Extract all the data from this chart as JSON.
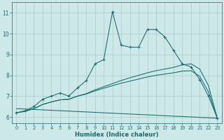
{
  "xlabel": "Humidex (Indice chaleur)",
  "bg_color": "#cce8e8",
  "grid_color": "#aacccc",
  "line_color": "#1a6b6b",
  "xlim": [
    -0.5,
    23.5
  ],
  "ylim": [
    5.7,
    11.5
  ],
  "xticks": [
    0,
    1,
    2,
    3,
    4,
    5,
    6,
    7,
    8,
    9,
    10,
    11,
    12,
    13,
    14,
    15,
    16,
    17,
    18,
    19,
    20,
    21,
    22,
    23
  ],
  "yticks": [
    6,
    7,
    8,
    9,
    10,
    11
  ],
  "line1_x": [
    0,
    1,
    2,
    3,
    4,
    5,
    6,
    7,
    8,
    9,
    10,
    11,
    12,
    13,
    14,
    15,
    16,
    17,
    18,
    19,
    20,
    21,
    22,
    23
  ],
  "line1_y": [
    6.2,
    6.3,
    6.5,
    6.85,
    7.0,
    7.15,
    7.0,
    7.4,
    7.75,
    8.55,
    8.75,
    11.05,
    9.45,
    9.35,
    9.35,
    10.2,
    10.2,
    9.85,
    9.2,
    8.55,
    8.4,
    7.8,
    7.0,
    5.95
  ],
  "line2_x": [
    0,
    1,
    2,
    3,
    4,
    5,
    6,
    7,
    8,
    9,
    10,
    11,
    12,
    13,
    14,
    15,
    16,
    17,
    18,
    19,
    20,
    21,
    22,
    23
  ],
  "line2_y": [
    6.2,
    6.27,
    6.4,
    6.6,
    6.72,
    6.82,
    6.85,
    7.0,
    7.12,
    7.3,
    7.45,
    7.6,
    7.75,
    7.88,
    8.0,
    8.12,
    8.22,
    8.3,
    8.38,
    8.5,
    8.55,
    8.3,
    7.5,
    5.95
  ],
  "line3_x": [
    0,
    1,
    2,
    3,
    4,
    5,
    6,
    7,
    8,
    9,
    10,
    11,
    12,
    13,
    14,
    15,
    16,
    17,
    18,
    19,
    20,
    21,
    22,
    23
  ],
  "line3_y": [
    6.2,
    6.27,
    6.4,
    6.6,
    6.72,
    6.82,
    6.85,
    7.0,
    7.1,
    7.25,
    7.38,
    7.5,
    7.62,
    7.72,
    7.82,
    7.92,
    8.0,
    8.06,
    8.12,
    8.2,
    8.22,
    7.95,
    7.2,
    5.95
  ],
  "line4_x": [
    0,
    1,
    2,
    3,
    4,
    5,
    6,
    7,
    8,
    9,
    10,
    11,
    12,
    13,
    14,
    15,
    16,
    17,
    18,
    19,
    20,
    21,
    22,
    23
  ],
  "line4_y": [
    6.4,
    6.38,
    6.36,
    6.34,
    6.32,
    6.3,
    6.28,
    6.26,
    6.24,
    6.22,
    6.2,
    6.18,
    6.16,
    6.14,
    6.12,
    6.1,
    6.08,
    6.06,
    6.04,
    6.02,
    6.0,
    5.98,
    5.96,
    5.94
  ]
}
